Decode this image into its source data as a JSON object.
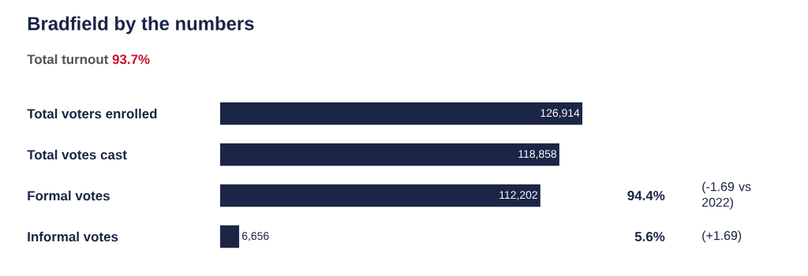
{
  "chart_data": {
    "type": "bar",
    "orientation": "horizontal",
    "title": "Bradfield by the numbers",
    "subtitle": "Total turnout",
    "categories": [
      "Total voters enrolled",
      "Total votes cast",
      "Formal votes",
      "Informal votes"
    ],
    "values": [
      126914,
      118858,
      112202,
      6656
    ],
    "color": "#1b2545",
    "value_labels": [
      "126,914",
      "118,858",
      "112,202",
      "6,656"
    ],
    "xlim": [
      0,
      126914
    ],
    "tick_labels": "y",
    "annotations": [
      "93.7%",
      "94.4%",
      "(-1.69 vs 2022)",
      "5.6%",
      "(+1.69)"
    ]
  }
}
